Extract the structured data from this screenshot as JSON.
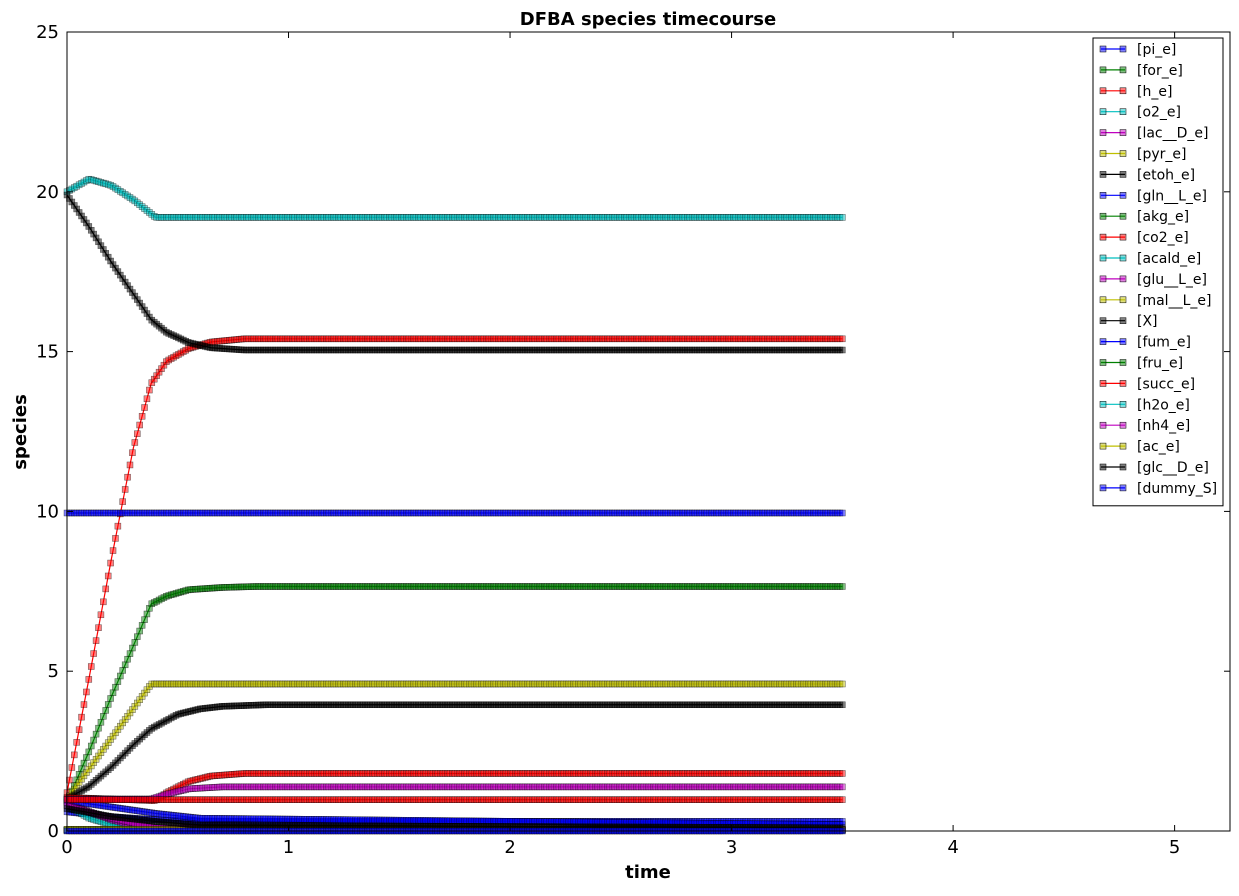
{
  "chart_data": {
    "type": "line",
    "title": "DFBA species timecourse",
    "xlabel": "time",
    "ylabel": "species",
    "xlim": [
      0,
      5.25
    ],
    "ylim": [
      0,
      25
    ],
    "xticks": [
      0,
      1,
      2,
      3,
      4,
      5
    ],
    "yticks": [
      0,
      5,
      10,
      15,
      20,
      25
    ],
    "grid": false,
    "legend_position": "top-right",
    "marker": "square",
    "series": [
      {
        "name": "[pi_e]",
        "color": "#0000ff",
        "x": [
          0,
          0.2,
          0.4,
          0.6,
          0.8,
          3.5
        ],
        "y": [
          0.6,
          0.45,
          0.35,
          0.3,
          0.3,
          0.3
        ]
      },
      {
        "name": "[for_e]",
        "color": "#008000",
        "x": [
          0,
          0.1,
          0.2,
          0.3,
          0.38,
          0.45,
          0.55,
          0.7,
          0.85,
          3.5
        ],
        "y": [
          0.9,
          2.5,
          4.2,
          5.8,
          7.1,
          7.35,
          7.55,
          7.62,
          7.65,
          7.65
        ]
      },
      {
        "name": "[h_e]",
        "color": "#ff0000",
        "x": [
          0,
          0.1,
          0.2,
          0.3,
          0.38,
          0.45,
          0.55,
          0.65,
          0.8,
          3.5
        ],
        "y": [
          1.2,
          4.8,
          8.5,
          12.0,
          14.0,
          14.7,
          15.1,
          15.3,
          15.4,
          15.4
        ]
      },
      {
        "name": "[o2_e]",
        "color": "#00bfbf",
        "x": [
          0,
          0.1,
          0.2,
          0.3,
          0.4,
          3.5
        ],
        "y": [
          0.8,
          0.4,
          0.2,
          0.1,
          0.05,
          0.05
        ]
      },
      {
        "name": "[lac__D_e]",
        "color": "#bf00bf",
        "x": [
          0,
          0.1,
          0.2,
          0.3,
          0.4,
          3.5
        ],
        "y": [
          0.9,
          0.6,
          0.35,
          0.18,
          0.08,
          0.05
        ]
      },
      {
        "name": "[pyr_e]",
        "color": "#bfbf00",
        "x": [
          0,
          0.38,
          3.5
        ],
        "y": [
          1.0,
          4.6,
          4.6
        ]
      },
      {
        "name": "[etoh_e]",
        "color": "#000000",
        "x": [
          0,
          0.1,
          0.2,
          0.3,
          0.38,
          0.5,
          0.6,
          0.7,
          0.9,
          3.5
        ],
        "y": [
          1.0,
          1.4,
          2.0,
          2.7,
          3.2,
          3.65,
          3.82,
          3.9,
          3.95,
          3.95
        ]
      },
      {
        "name": "[gln__L_e]",
        "color": "#0000ff",
        "x": [
          0,
          0.2,
          0.4,
          0.6,
          3.5
        ],
        "y": [
          0.95,
          0.75,
          0.55,
          0.4,
          0.2
        ]
      },
      {
        "name": "[akg_e]",
        "color": "#008000",
        "x": [
          0,
          0.3,
          3.5
        ],
        "y": [
          0.02,
          0.02,
          0.02
        ]
      },
      {
        "name": "[co2_e]",
        "color": "#ff0000",
        "x": [
          0,
          0.2,
          0.4,
          0.45,
          0.55,
          0.65,
          0.8,
          3.5
        ],
        "y": [
          1.05,
          1.0,
          0.95,
          1.2,
          1.55,
          1.72,
          1.8,
          1.8
        ]
      },
      {
        "name": "[acald_e]",
        "color": "#00bfbf",
        "x": [
          0,
          0.1,
          0.2,
          0.3,
          0.4,
          3.5
        ],
        "y": [
          20.0,
          20.4,
          20.2,
          19.75,
          19.2,
          19.2
        ]
      },
      {
        "name": "[glu__L_e]",
        "color": "#bf00bf",
        "x": [
          0,
          0.38,
          0.45,
          0.55,
          0.7,
          3.5
        ],
        "y": [
          1.0,
          1.0,
          1.15,
          1.32,
          1.38,
          1.38
        ]
      },
      {
        "name": "[mal__L_e]",
        "color": "#bfbf00",
        "x": [
          0,
          3.5
        ],
        "y": [
          0.05,
          0.05
        ]
      },
      {
        "name": "[X]",
        "color": "#000000",
        "x": [
          0,
          0.1,
          0.2,
          0.3,
          0.38,
          0.45,
          0.55,
          0.65,
          0.8,
          3.5
        ],
        "y": [
          19.9,
          18.9,
          17.8,
          16.8,
          16.0,
          15.6,
          15.28,
          15.12,
          15.05,
          15.05
        ]
      },
      {
        "name": "[fum_e]",
        "color": "#0000ff",
        "x": [
          0,
          3.5
        ],
        "y": [
          9.95,
          9.95
        ]
      },
      {
        "name": "[fru_e]",
        "color": "#008000",
        "x": [
          0,
          3.5
        ],
        "y": [
          0.02,
          0.02
        ]
      },
      {
        "name": "[succ_e]",
        "color": "#ff0000",
        "x": [
          0,
          3.5
        ],
        "y": [
          0.98,
          0.98
        ]
      },
      {
        "name": "[h2o_e]",
        "color": "#00bfbf",
        "x": [
          0,
          3.5
        ],
        "y": [
          0.03,
          0.03
        ]
      },
      {
        "name": "[nh4_e]",
        "color": "#bf00bf",
        "x": [
          0,
          0.2,
          0.4,
          3.5
        ],
        "y": [
          0.8,
          0.4,
          0.1,
          0.05
        ]
      },
      {
        "name": "[ac_e]",
        "color": "#bfbf00",
        "x": [
          0,
          3.5
        ],
        "y": [
          0.05,
          0.05
        ]
      },
      {
        "name": "[glc__D_e]",
        "color": "#000000",
        "x": [
          0,
          0.2,
          0.4,
          0.6,
          3.5
        ],
        "y": [
          0.7,
          0.45,
          0.3,
          0.18,
          0.1
        ]
      },
      {
        "name": "[dummy_S]",
        "color": "#0000ff",
        "x": [
          0,
          3.5
        ],
        "y": [
          0.0,
          0.0
        ]
      }
    ]
  }
}
